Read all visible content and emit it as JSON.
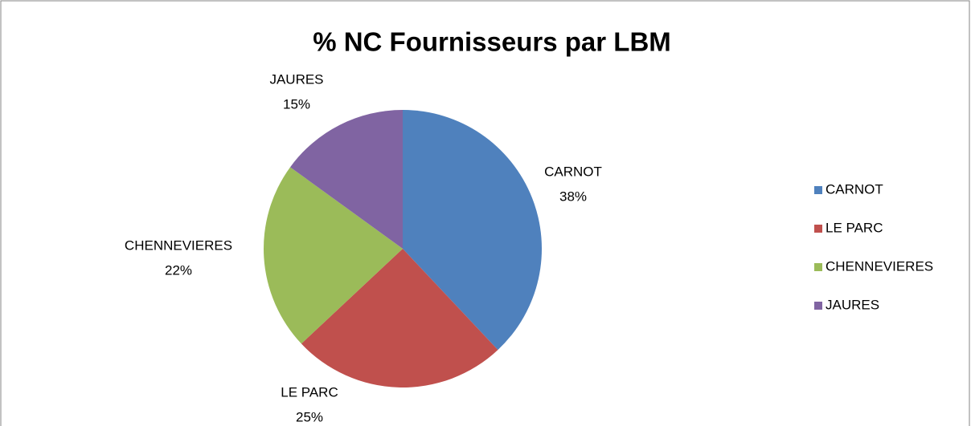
{
  "chart_data": {
    "type": "pie",
    "title": "% NC Fournisseurs par LBM",
    "categories": [
      "CARNOT",
      "LE PARC",
      "CHENNEVIERES",
      "JAURES"
    ],
    "values": [
      38,
      25,
      22,
      15
    ],
    "value_labels": [
      "38%",
      "25%",
      "22%",
      "15%"
    ],
    "colors": [
      "#4f81bd",
      "#c0504d",
      "#9bbb59",
      "#8064a2"
    ],
    "legend": "right"
  }
}
